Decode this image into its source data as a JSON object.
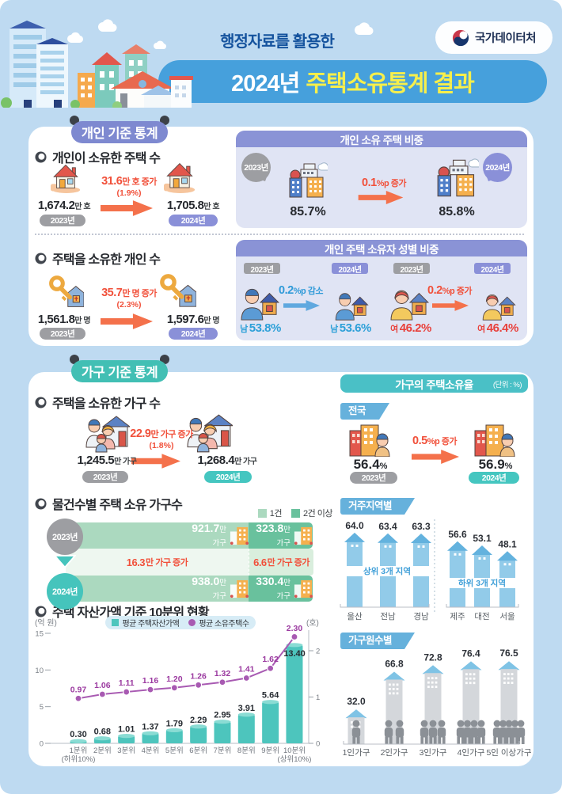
{
  "header": {
    "kicker": "행정자료를 활용한",
    "title_year": "2024년",
    "title_main": "주택소유통계 결과",
    "agency": "국가데이터처"
  },
  "individual": {
    "ribbon": "개인 기준 통계",
    "houses": {
      "heading": "개인이 소유한 주택 수",
      "before": {
        "value": "1,674.2",
        "unit": "만 호",
        "year": "2023년"
      },
      "change": {
        "value": "31.6",
        "unit": "만 호 증가",
        "pct": "(1.9%)"
      },
      "after": {
        "value": "1,705.8",
        "unit": "만 호",
        "year": "2024년"
      }
    },
    "share": {
      "title": "개인 소유 주택 비중",
      "before_year": "2023년",
      "before_value": "85.7%",
      "change_value": "0.1",
      "change_unit": "%p 증가",
      "after_value": "85.8%",
      "after_year": "2024년"
    },
    "owners": {
      "heading": "주택을 소유한 개인 수",
      "before": {
        "value": "1,561.8",
        "unit": "만 명",
        "year": "2023년"
      },
      "change": {
        "value": "35.7",
        "unit": "만 명 증가",
        "pct": "(2.3%)"
      },
      "after": {
        "value": "1,597.6",
        "unit": "만 명",
        "year": "2024년"
      }
    },
    "gender": {
      "title": "개인 주택 소유자 성별 비중",
      "male": {
        "y1": "2023년",
        "y2": "2024년",
        "v1_label": "남",
        "v1": "53.8%",
        "change_value": "0.2",
        "change_unit": "%p 감소",
        "v2_label": "남",
        "v2": "53.6%"
      },
      "female": {
        "y1": "2023년",
        "y2": "2024년",
        "v1_label": "여",
        "v1": "46.2%",
        "change_value": "0.2",
        "change_unit": "%p 증가",
        "v2_label": "여",
        "v2": "46.4%"
      }
    }
  },
  "household": {
    "ribbon": "가구 기준 통계",
    "owned": {
      "heading": "주택을 소유한 가구 수",
      "before": {
        "value": "1,245.5",
        "unit": "만 가구",
        "year": "2023년"
      },
      "change": {
        "value": "22.9",
        "unit": "만 가구 증가",
        "pct": "(1.8%)"
      },
      "after": {
        "value": "1,268.4",
        "unit": "만 가구",
        "year": "2024년"
      }
    },
    "by_count_heading": "물건수별 주택 소유 가구수",
    "decile_heading": "주택 자산가액 기준 10분위 현황",
    "rate": {
      "title": "가구의 주택소유율",
      "unit": "(단위 : %)",
      "national_tab": "전국",
      "region_tab": "거주지역별",
      "size_tab": "가구원수별",
      "national": {
        "before_value": "56.4",
        "before_suffix": "%",
        "before_year": "2023년",
        "change_value": "0.5",
        "change_unit": "%p 증가",
        "after_value": "56.9",
        "after_suffix": "%",
        "after_year": "2024년"
      }
    }
  },
  "chart_data": [
    {
      "id": "ownership-by-count",
      "type": "bar",
      "title": "물건수별 주택 소유 가구수",
      "legend": [
        "1건",
        "2건 이상"
      ],
      "categories": [
        "2023년",
        "2024년"
      ],
      "series": [
        {
          "name": "1건",
          "values": [
            921.7,
            938.0
          ]
        },
        {
          "name": "2건 이상",
          "values": [
            323.8,
            330.4
          ]
        }
      ],
      "value_suffix": "만",
      "value_line2": "가구",
      "changes": [
        {
          "value": "16.3",
          "suffix": "만 가구 증가"
        },
        {
          "value": "6.6",
          "suffix": "만 가구 증가"
        }
      ]
    },
    {
      "id": "asset-decile",
      "type": "bar+line",
      "title": "주택 자산가액 기준 10분위 현황",
      "left_axis_label": "(억 원)",
      "right_axis_label": "(호)",
      "left_ticks": [
        0,
        5,
        10,
        15
      ],
      "right_ticks": [
        0,
        1,
        2
      ],
      "left_max": 15,
      "right_max": 2.4,
      "legend": [
        "평균 주택자산가액",
        "평균 소유주택수"
      ],
      "categories": [
        "1분위",
        "2분위",
        "3분위",
        "4분위",
        "5분위",
        "6분위",
        "7분위",
        "8분위",
        "9분위",
        "10분위"
      ],
      "category_note_first": "(하위10%)",
      "category_note_last": "(상위10%)",
      "bars": [
        0.3,
        0.68,
        1.01,
        1.37,
        1.79,
        2.29,
        2.95,
        3.91,
        5.64,
        13.4
      ],
      "bar_labels": [
        "0.30",
        "0.68",
        "1.01",
        "1.37",
        "1.79",
        "2.29",
        "2.95",
        "3.91",
        "5.64",
        "13.40"
      ],
      "line": [
        0.97,
        1.06,
        1.11,
        1.16,
        1.2,
        1.26,
        1.32,
        1.41,
        1.62,
        2.3
      ],
      "line_labels": [
        "0.97",
        "1.06",
        "1.11",
        "1.16",
        "1.20",
        "1.26",
        "1.32",
        "1.41",
        "1.62",
        "2.30"
      ]
    },
    {
      "id": "region-ownership-rate",
      "type": "bar",
      "title": "거주지역별",
      "groups": [
        {
          "label": "상위 3개 지역",
          "categories": [
            "울산",
            "전남",
            "경남"
          ],
          "values": [
            64.0,
            63.4,
            63.3
          ],
          "value_labels": [
            "64.0",
            "63.4",
            "63.3"
          ]
        },
        {
          "label": "하위 3개 지역",
          "categories": [
            "제주",
            "대전",
            "서울"
          ],
          "values": [
            56.6,
            53.1,
            48.1
          ],
          "value_labels": [
            "56.6",
            "53.1",
            "48.1"
          ]
        }
      ]
    },
    {
      "id": "household-size-ownership-rate",
      "type": "bar",
      "title": "가구원수별",
      "categories": [
        "1인가구",
        "2인가구",
        "3인가구",
        "4인가구",
        "5인 이상가구"
      ],
      "values": [
        32.0,
        66.8,
        72.8,
        76.4,
        76.5
      ],
      "value_labels": [
        "32.0",
        "66.8",
        "72.8",
        "76.4",
        "76.5"
      ],
      "persons": [
        1,
        2,
        3,
        4,
        5
      ]
    }
  ]
}
